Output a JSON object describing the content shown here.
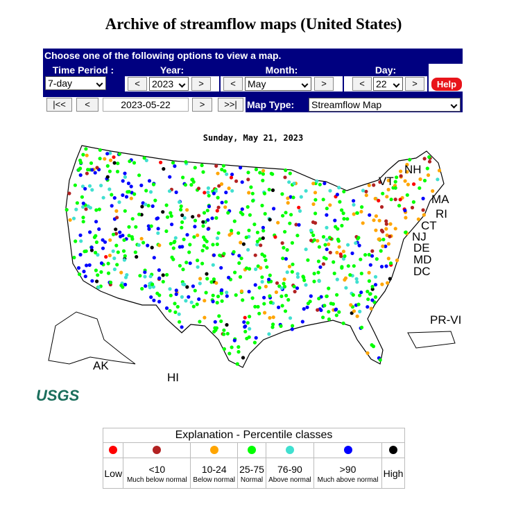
{
  "header": {
    "title": "Archive of streamflow maps (United States)"
  },
  "form": {
    "banner": "Choose one of the following options to view a map.",
    "time_period": {
      "label": "Time Period :",
      "value": "7-day"
    },
    "year": {
      "label": "Year:",
      "prev": "<",
      "value": "2023",
      "next": ">"
    },
    "month": {
      "label": "Month:",
      "prev": "<",
      "value": "May",
      "next": ">"
    },
    "day": {
      "label": "Day:",
      "prev": "<",
      "value": "22",
      "next": ">"
    },
    "help": "Help",
    "nav": {
      "first": "|<<",
      "prev": "<",
      "date": "2023-05-22",
      "next": ">",
      "last": ">>|"
    },
    "map_type": {
      "label": "Map Type:",
      "value": "Streamflow Map"
    }
  },
  "map": {
    "date": "Sunday, May 21, 2023",
    "labels": [
      "NH",
      "VT",
      "MA",
      "RI",
      "CT",
      "NJ",
      "DE",
      "MD",
      "DC",
      "PR-VI",
      "AK",
      "HI"
    ],
    "logo": "USGS"
  },
  "explanation": {
    "title": "Explanation - Percentile classes",
    "low": {
      "label": "Low",
      "color": "#ff0000"
    },
    "classes": [
      {
        "range": "<10",
        "note": "Much below normal",
        "color": "#b22222"
      },
      {
        "range": "10-24",
        "note": "Below normal",
        "color": "#ffa500"
      },
      {
        "range": "25-75",
        "note": "Normal",
        "color": "#00ff00"
      },
      {
        "range": "76-90",
        "note": "Above normal",
        "color": "#40e0d0"
      },
      {
        "range": ">90",
        "note": "Much above normal",
        "color": "#0000ff"
      }
    ],
    "high": {
      "label": "High",
      "color": "#000000"
    }
  }
}
